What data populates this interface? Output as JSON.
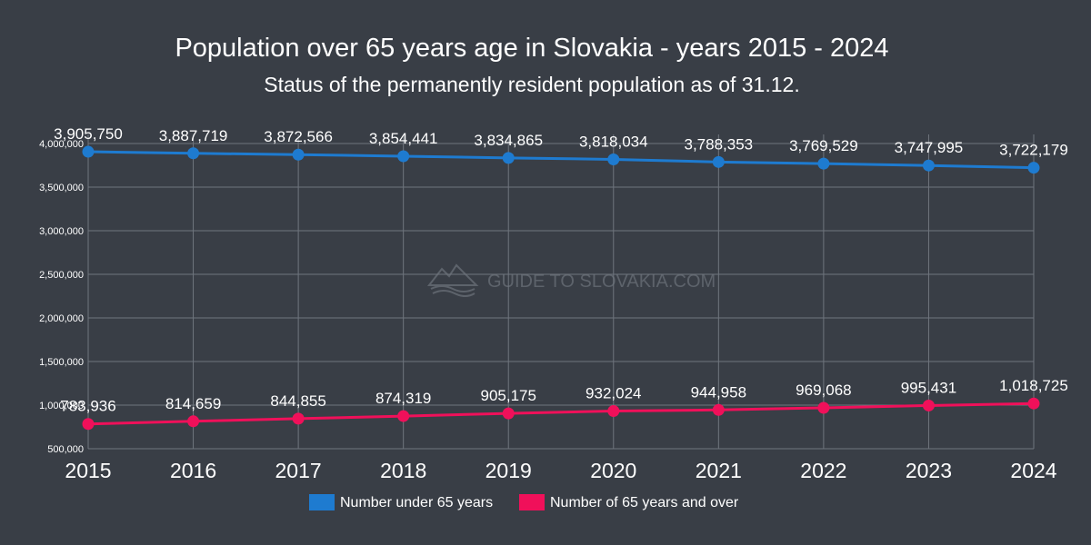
{
  "chart_data": {
    "type": "line",
    "title": "Population over 65 years age in Slovakia - years 2015 - 2024",
    "subtitle": "Status of the permanently resident population as of 31.12.",
    "watermark": "GUIDE TO SLOVAKIA.COM",
    "xlabel": "",
    "ylabel": "",
    "x": [
      "2015",
      "2016",
      "2017",
      "2018",
      "2019",
      "2020",
      "2021",
      "2022",
      "2023",
      "2024"
    ],
    "ylim": [
      500000,
      4000000
    ],
    "yticks": [
      500000,
      1000000,
      1500000,
      2000000,
      2500000,
      3000000,
      3500000,
      4000000
    ],
    "ytick_labels": [
      "500,000",
      "1,000,000",
      "1,500,000",
      "2,000,000",
      "2,500,000",
      "3,000,000",
      "3,500,000",
      "4,000,000"
    ],
    "grid": true,
    "legend_position": "bottom-center",
    "series": [
      {
        "name": "Number under 65 years",
        "color": "#1e7bd0",
        "values": [
          3905750,
          3887719,
          3872566,
          3854441,
          3834865,
          3818034,
          3788353,
          3769529,
          3747995,
          3722179
        ],
        "labels": [
          "3,905,750",
          "3,887,719",
          "3,872,566",
          "3,854,441",
          "3,834,865",
          "3,818,034",
          "3,788,353",
          "3,769,529",
          "3,747,995",
          "3,722,179"
        ]
      },
      {
        "name": "Number of 65 years and over",
        "color": "#f0105a",
        "values": [
          783936,
          814659,
          844855,
          874319,
          905175,
          932024,
          944958,
          969068,
          995431,
          1018725
        ],
        "labels": [
          "783,936",
          "814,659",
          "844,855",
          "874,319",
          "905,175",
          "932,024",
          "944,958",
          "969,068",
          "995,431",
          "1,018,725"
        ]
      }
    ]
  }
}
